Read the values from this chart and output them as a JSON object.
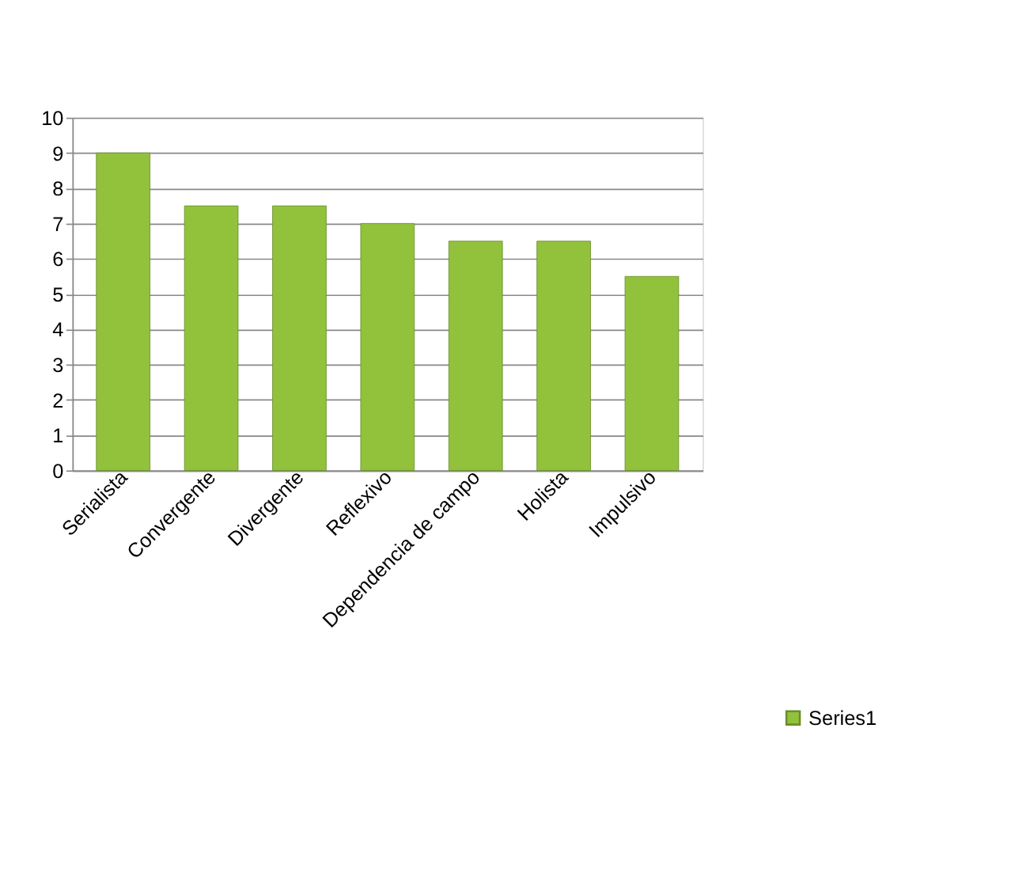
{
  "chart_data": {
    "type": "bar",
    "categories": [
      "Serialista",
      "Convergente",
      "Divergente",
      "Reflexivo",
      "Dependencia de campo",
      "Holista",
      "Impulsivo"
    ],
    "series": [
      {
        "name": "Series1",
        "color": "#92c13c",
        "values": [
          9,
          7.5,
          7.5,
          7,
          6.5,
          6.5,
          5.5
        ]
      }
    ],
    "ylim": [
      0,
      10
    ],
    "yticks": [
      0,
      1,
      2,
      3,
      4,
      5,
      6,
      7,
      8,
      9,
      10
    ],
    "grid": "y",
    "legend": "right"
  }
}
